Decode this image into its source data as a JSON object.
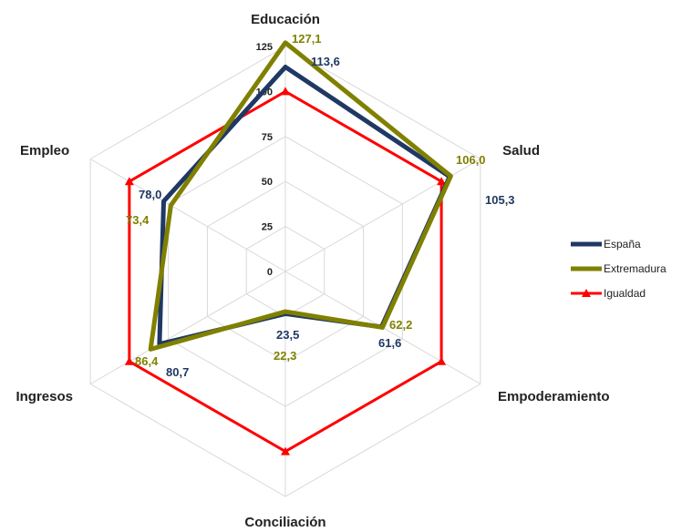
{
  "chart_data": {
    "type": "radar",
    "categories": [
      "Educación",
      "Salud",
      "Empoderamiento",
      "Conciliación",
      "Ingresos",
      "Empleo"
    ],
    "rlim": [
      0,
      125
    ],
    "ticks": [
      "0",
      "25",
      "50",
      "75",
      "100",
      "125"
    ],
    "tick_values": [
      0,
      25,
      50,
      75,
      100,
      125
    ],
    "grid": true,
    "legend_position": "right",
    "series": [
      {
        "name": "España",
        "color": "#1f3864",
        "values": [
          113.6,
          105.3,
          61.6,
          23.5,
          80.7,
          78.0
        ],
        "labels": [
          "113,6",
          "105,3",
          "61,6",
          "23,5",
          "80,7",
          "78,0"
        ]
      },
      {
        "name": "Extremadura",
        "color": "#808000",
        "values": [
          127.1,
          106.0,
          62.2,
          22.3,
          86.4,
          73.4
        ],
        "labels": [
          "127,1",
          "106,0",
          "62,2",
          "22,3",
          "86,4",
          "73,4"
        ]
      },
      {
        "name": "Igualdad",
        "color": "#ff0000",
        "values": [
          100,
          100,
          100,
          100,
          100,
          100
        ],
        "labels": []
      }
    ]
  }
}
